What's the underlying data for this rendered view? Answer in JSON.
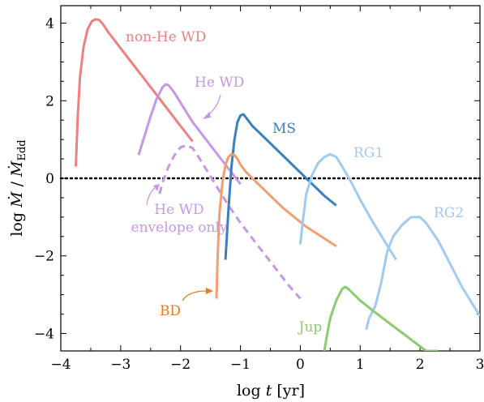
{
  "chart_data": {
    "type": "line",
    "title": "",
    "xlabel_prefix": "log ",
    "xlabel_var": "t",
    "xlabel_suffix": " [yr]",
    "ylabel_prefix": "log ",
    "ylabel_mdot": "Ṁ",
    "ylabel_slash": " / ",
    "ylabel_sub": "Edd",
    "xlim": [
      -4,
      3
    ],
    "ylim": [
      -4.45,
      4.45
    ],
    "xticks": [
      -4,
      -3,
      -2,
      -1,
      0,
      1,
      2,
      3
    ],
    "xtick_labels": [
      "−4",
      "−3",
      "−2",
      "−1",
      "0",
      "1",
      "2",
      "3"
    ],
    "yticks": [
      -4,
      -2,
      0,
      2,
      4
    ],
    "ytick_labels": [
      "−4",
      "−2",
      "0",
      "2",
      "4"
    ],
    "reference_line": {
      "y": 0,
      "style": "dotted",
      "color": "#000000"
    },
    "series": [
      {
        "name": "non-He WD",
        "color": "#f08080",
        "style": "solid",
        "x": [
          -3.75,
          -3.72,
          -3.68,
          -3.62,
          -3.55,
          -3.48,
          -3.42,
          -3.36,
          -3.3,
          -3.2,
          -3.0,
          -2.8,
          -2.6,
          -2.4,
          -2.2,
          -2.0,
          -1.8
        ],
        "y": [
          0.3,
          1.5,
          2.6,
          3.4,
          3.85,
          4.05,
          4.1,
          4.08,
          3.98,
          3.75,
          3.35,
          2.95,
          2.55,
          2.15,
          1.75,
          1.35,
          0.95
        ]
      },
      {
        "name": "He WD",
        "color": "#c896e6",
        "style": "solid",
        "x": [
          -2.7,
          -2.6,
          -2.5,
          -2.4,
          -2.3,
          -2.25,
          -2.2,
          -2.1,
          -2.0,
          -1.8,
          -1.6,
          -1.4,
          -1.2,
          -1.0
        ],
        "y": [
          0.6,
          1.1,
          1.6,
          2.05,
          2.35,
          2.42,
          2.4,
          2.2,
          1.95,
          1.45,
          1.05,
          0.65,
          0.25,
          -0.15
        ]
      },
      {
        "name": "He WD envelope only",
        "color": "#c896e6",
        "style": "dashed",
        "x": [
          -2.35,
          -2.3,
          -2.2,
          -2.1,
          -2.0,
          -1.9,
          -1.8,
          -1.7,
          -1.6,
          -1.4,
          -1.2,
          -1.0,
          -0.8,
          -0.6,
          -0.4,
          -0.2,
          0.0
        ],
        "y": [
          -0.4,
          -0.1,
          0.3,
          0.6,
          0.8,
          0.85,
          0.78,
          0.55,
          0.3,
          -0.2,
          -0.7,
          -1.15,
          -1.55,
          -1.95,
          -2.35,
          -2.75,
          -3.1
        ]
      },
      {
        "name": "MS",
        "color": "#3a7fc0",
        "style": "solid",
        "x": [
          -1.25,
          -1.2,
          -1.15,
          -1.1,
          -1.05,
          -1.0,
          -0.95,
          -0.9,
          -0.8,
          -0.6,
          -0.4,
          -0.2,
          0.0,
          0.2,
          0.4,
          0.6
        ],
        "y": [
          -2.1,
          -0.8,
          0.3,
          1.0,
          1.45,
          1.62,
          1.65,
          1.55,
          1.35,
          1.05,
          0.75,
          0.45,
          0.15,
          -0.15,
          -0.45,
          -0.7
        ]
      },
      {
        "name": "BD",
        "color": "#f0a070",
        "style": "solid",
        "x": [
          -1.4,
          -1.38,
          -1.35,
          -1.3,
          -1.25,
          -1.2,
          -1.15,
          -1.1,
          -1.05,
          -1.0,
          -0.9,
          -0.7,
          -0.5,
          -0.3,
          -0.1,
          0.1,
          0.3,
          0.6
        ],
        "y": [
          -3.1,
          -2.0,
          -0.9,
          -0.1,
          0.35,
          0.55,
          0.62,
          0.6,
          0.5,
          0.35,
          0.15,
          -0.15,
          -0.45,
          -0.75,
          -1.0,
          -1.25,
          -1.45,
          -1.75
        ]
      },
      {
        "name": "RG1",
        "color": "#a0cbf0",
        "style": "solid",
        "x": [
          0.0,
          0.05,
          0.1,
          0.2,
          0.3,
          0.4,
          0.5,
          0.6,
          0.7,
          0.85,
          1.0,
          1.2,
          1.4,
          1.6
        ],
        "y": [
          -1.7,
          -1.0,
          -0.4,
          0.1,
          0.4,
          0.55,
          0.62,
          0.55,
          0.3,
          -0.1,
          -0.55,
          -1.1,
          -1.6,
          -2.1
        ]
      },
      {
        "name": "RG2",
        "color": "#a0cbf0",
        "style": "solid",
        "x": [
          1.1,
          1.15,
          1.25,
          1.35,
          1.45,
          1.55,
          1.7,
          1.85,
          2.0,
          2.1,
          2.3,
          2.5,
          2.7,
          2.9,
          3.0
        ],
        "y": [
          -3.9,
          -3.6,
          -3.3,
          -2.7,
          -1.9,
          -1.5,
          -1.2,
          -1.0,
          -1.0,
          -1.15,
          -1.6,
          -2.2,
          -2.8,
          -3.3,
          -3.55
        ]
      },
      {
        "name": "Jup",
        "color": "#8ccc6e",
        "style": "solid",
        "x": [
          0.4,
          0.45,
          0.5,
          0.6,
          0.7,
          0.75,
          0.8,
          0.9,
          1.0,
          1.2,
          1.5,
          1.8,
          2.1,
          2.3
        ],
        "y": [
          -4.45,
          -4.0,
          -3.6,
          -3.15,
          -2.85,
          -2.8,
          -2.85,
          -3.0,
          -3.15,
          -3.4,
          -3.75,
          -4.1,
          -4.45,
          -4.45
        ]
      }
    ],
    "annotations": [
      {
        "text": "non-He WD",
        "color": "#f08080"
      },
      {
        "text": "He WD",
        "color": "#c896e6"
      },
      {
        "text": "MS",
        "color": "#3a7fc0"
      },
      {
        "text": "RG1",
        "color": "#a0cbf0"
      },
      {
        "text": "RG2",
        "color": "#a0cbf0"
      },
      {
        "text": "He WD",
        "color": "#c896e6"
      },
      {
        "text": "envelope only",
        "color": "#c896e6"
      },
      {
        "text": "BD",
        "color": "#e07b30"
      },
      {
        "text": "Jup",
        "color": "#8ccc6e"
      }
    ]
  }
}
